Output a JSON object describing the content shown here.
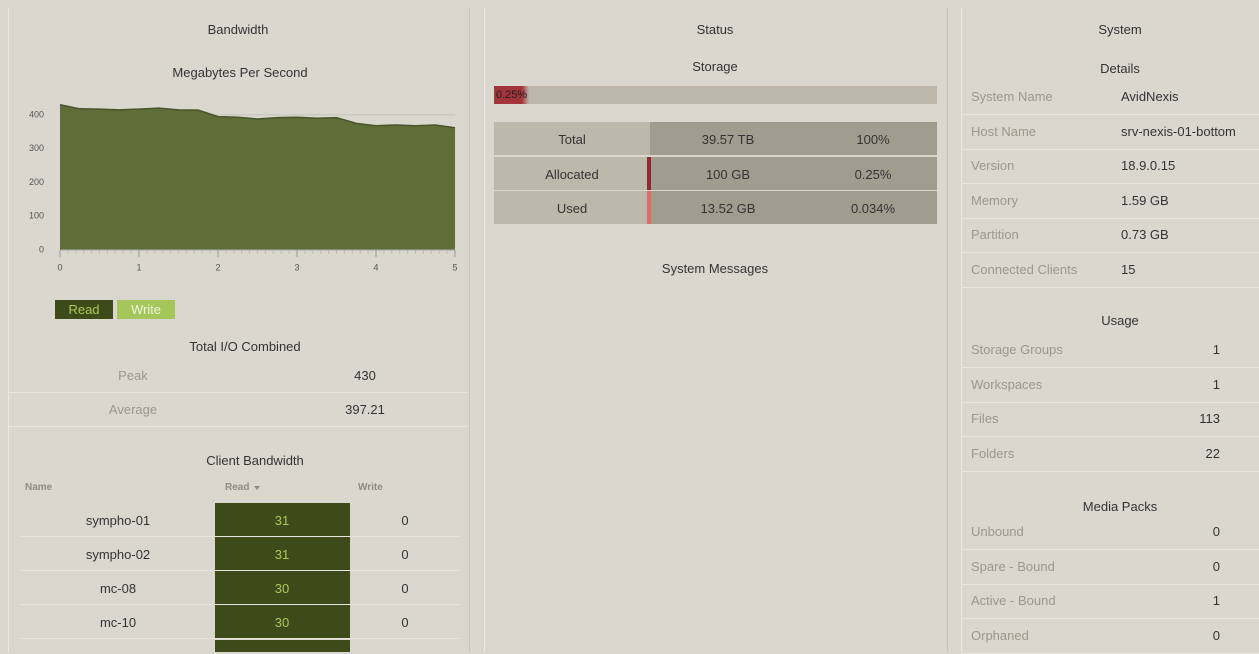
{
  "bandwidth": {
    "title": "Bandwidth",
    "chart": {
      "type": "area",
      "title": "Megabytes Per Second",
      "color": "#5f6e39",
      "x": [
        0,
        0.25,
        0.5,
        0.75,
        1,
        1.25,
        1.5,
        1.75,
        2,
        2.25,
        2.5,
        2.75,
        3,
        3.25,
        3.5,
        3.75,
        4,
        4.25,
        4.5,
        4.75,
        5
      ],
      "values": [
        430,
        418,
        417,
        415,
        417,
        420,
        415,
        414,
        395,
        393,
        388,
        392,
        393,
        390,
        392,
        375,
        368,
        370,
        368,
        370,
        362
      ],
      "xlim": [
        0,
        5
      ],
      "xticks": [
        0,
        1,
        2,
        3,
        4,
        5
      ],
      "ylim": [
        0,
        450
      ],
      "yticks": [
        0,
        100,
        200,
        300,
        400
      ],
      "grid": true
    },
    "legend": [
      {
        "name": "Read",
        "color": "#3d4a1a"
      },
      {
        "name": "Write",
        "color": "#a4c65a"
      }
    ],
    "total_io": {
      "title": "Total I/O Combined",
      "rows": [
        [
          "Peak",
          "430"
        ],
        [
          "Average",
          "397.21"
        ]
      ]
    },
    "clients": {
      "title": "Client Bandwidth",
      "columns": [
        "Name",
        "Read",
        "Write"
      ],
      "rows": [
        [
          "sympho-01",
          "31",
          "0"
        ],
        [
          "sympho-02",
          "31",
          "0"
        ],
        [
          "mc-08",
          "30",
          "0"
        ],
        [
          "mc-10",
          "30",
          "0"
        ]
      ]
    }
  },
  "status": {
    "title": "Status",
    "storage": {
      "title": "Storage",
      "bar_label": "0.25%",
      "percent": 0.25,
      "rows": [
        [
          "Total",
          "39.57 TB",
          "100%"
        ],
        [
          "Allocated",
          "100 GB",
          "0.25%"
        ],
        [
          "Used",
          "13.52 GB",
          "0.034%"
        ]
      ]
    },
    "messages_title": "System Messages"
  },
  "system": {
    "title": "System",
    "details": {
      "title": "Details",
      "rows": [
        [
          "System Name",
          "AvidNexis"
        ],
        [
          "Host Name",
          "srv-nexis-01-bottom"
        ],
        [
          "Version",
          "18.9.0.15"
        ],
        [
          "Memory",
          "1.59 GB"
        ],
        [
          "Partition",
          "0.73 GB"
        ],
        [
          "Connected Clients",
          "15"
        ]
      ]
    },
    "usage": {
      "title": "Usage",
      "rows": [
        [
          "Storage Groups",
          "1"
        ],
        [
          "Workspaces",
          "1"
        ],
        [
          "Files",
          "113"
        ],
        [
          "Folders",
          "22"
        ]
      ]
    },
    "media_packs": {
      "title": "Media Packs",
      "rows": [
        [
          "Unbound",
          "0"
        ],
        [
          "Spare - Bound",
          "0"
        ],
        [
          "Active - Bound",
          "1"
        ],
        [
          "Orphaned",
          "0"
        ]
      ]
    }
  }
}
